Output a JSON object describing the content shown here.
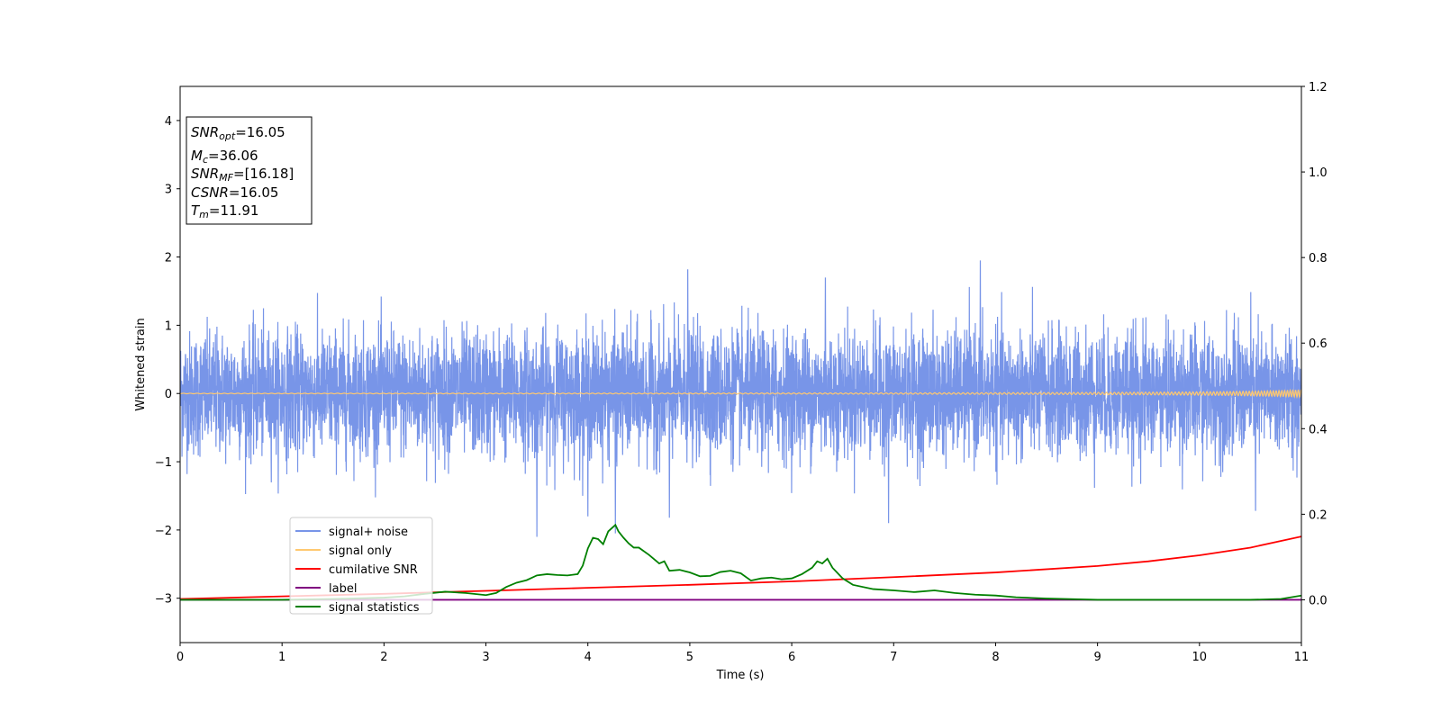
{
  "chart_data": {
    "type": "line",
    "xlabel": "Time (s)",
    "ylabel": "Whitened strain",
    "xlim": [
      0,
      11
    ],
    "ylim": [
      -3.65,
      4.5
    ],
    "y2lim": [
      -0.1,
      1.2
    ],
    "xticks": [
      "0",
      "1",
      "2",
      "3",
      "4",
      "5",
      "6",
      "7",
      "8",
      "9",
      "10",
      "11"
    ],
    "yticks": [
      "4",
      "3",
      "2",
      "1",
      "0",
      "−1",
      "−2",
      "−3"
    ],
    "y2ticks": [
      "1.2",
      "1.0",
      "0.8",
      "0.6",
      "0.4",
      "0.2",
      "0.0"
    ],
    "grid": false,
    "legend_position": "lower-left",
    "info_box": {
      "lines": [
        {
          "main": "SNR",
          "sub": "opt",
          "value": "=16.05"
        },
        {
          "main": "M",
          "sub": "c",
          "value": "=36.06"
        },
        {
          "main": "SNR",
          "sub": "MF",
          "value": "=[16.18]"
        },
        {
          "main": "CSNR",
          "sub": "",
          "value": "=16.05"
        },
        {
          "main": "T",
          "sub": "m",
          "value": "=11.91"
        }
      ]
    },
    "series": [
      {
        "name": "signal+ noise",
        "color": "#7895e8",
        "axis": "left",
        "style": "noise",
        "amplitude_std": 0.45,
        "peaks": [
          [
            3.5,
            -2.1
          ],
          [
            4.27,
            -2.05
          ],
          [
            7.85,
            1.95
          ],
          [
            4.98,
            1.82
          ],
          [
            6.33,
            1.7
          ],
          [
            6.95,
            -1.9
          ],
          [
            4.0,
            -1.8
          ],
          [
            4.8,
            -1.82
          ],
          [
            10.55,
            -1.72
          ]
        ]
      },
      {
        "name": "signal only",
        "color": "#ffc870",
        "axis": "left",
        "style": "chirp",
        "t_merger": 11.91
      },
      {
        "name": "cumilative SNR",
        "color": "#ff0000",
        "axis": "right",
        "x": [
          0,
          1,
          2,
          3,
          4,
          5,
          6,
          7,
          8,
          9,
          9.5,
          10,
          10.5,
          11
        ],
        "values": [
          0.002,
          0.008,
          0.014,
          0.021,
          0.028,
          0.035,
          0.043,
          0.053,
          0.064,
          0.079,
          0.09,
          0.104,
          0.122,
          0.148
        ]
      },
      {
        "name": "label",
        "color": "#800080",
        "axis": "right",
        "x": [
          0,
          11
        ],
        "values": [
          0.0,
          0.0
        ]
      },
      {
        "name": "signal statistics",
        "color": "#008000",
        "axis": "right",
        "x": [
          0,
          0.5,
          1,
          1.5,
          2,
          2.2,
          2.4,
          2.6,
          2.8,
          3.0,
          3.1,
          3.2,
          3.3,
          3.4,
          3.5,
          3.6,
          3.7,
          3.8,
          3.9,
          3.95,
          4.0,
          4.05,
          4.1,
          4.15,
          4.2,
          4.27,
          4.3,
          4.35,
          4.4,
          4.45,
          4.5,
          4.6,
          4.7,
          4.75,
          4.8,
          4.9,
          5.0,
          5.1,
          5.2,
          5.3,
          5.4,
          5.5,
          5.6,
          5.7,
          5.8,
          5.9,
          6.0,
          6.1,
          6.2,
          6.25,
          6.3,
          6.35,
          6.4,
          6.5,
          6.6,
          6.8,
          7.0,
          7.2,
          7.4,
          7.6,
          7.8,
          8.0,
          8.2,
          8.5,
          9.0,
          9.5,
          10.0,
          10.5,
          10.8,
          11.0
        ],
        "values": [
          0.0,
          0.0,
          0.0,
          0.002,
          0.005,
          0.008,
          0.014,
          0.019,
          0.016,
          0.011,
          0.016,
          0.03,
          0.04,
          0.046,
          0.057,
          0.06,
          0.058,
          0.057,
          0.06,
          0.08,
          0.12,
          0.145,
          0.142,
          0.13,
          0.16,
          0.175,
          0.16,
          0.145,
          0.132,
          0.122,
          0.122,
          0.105,
          0.085,
          0.09,
          0.068,
          0.07,
          0.064,
          0.055,
          0.056,
          0.065,
          0.068,
          0.062,
          0.045,
          0.05,
          0.052,
          0.048,
          0.05,
          0.06,
          0.075,
          0.09,
          0.085,
          0.096,
          0.075,
          0.05,
          0.035,
          0.025,
          0.022,
          0.018,
          0.022,
          0.016,
          0.012,
          0.01,
          0.006,
          0.003,
          0.0,
          0.0,
          0.0,
          0.0,
          0.002,
          0.01
        ]
      }
    ]
  }
}
